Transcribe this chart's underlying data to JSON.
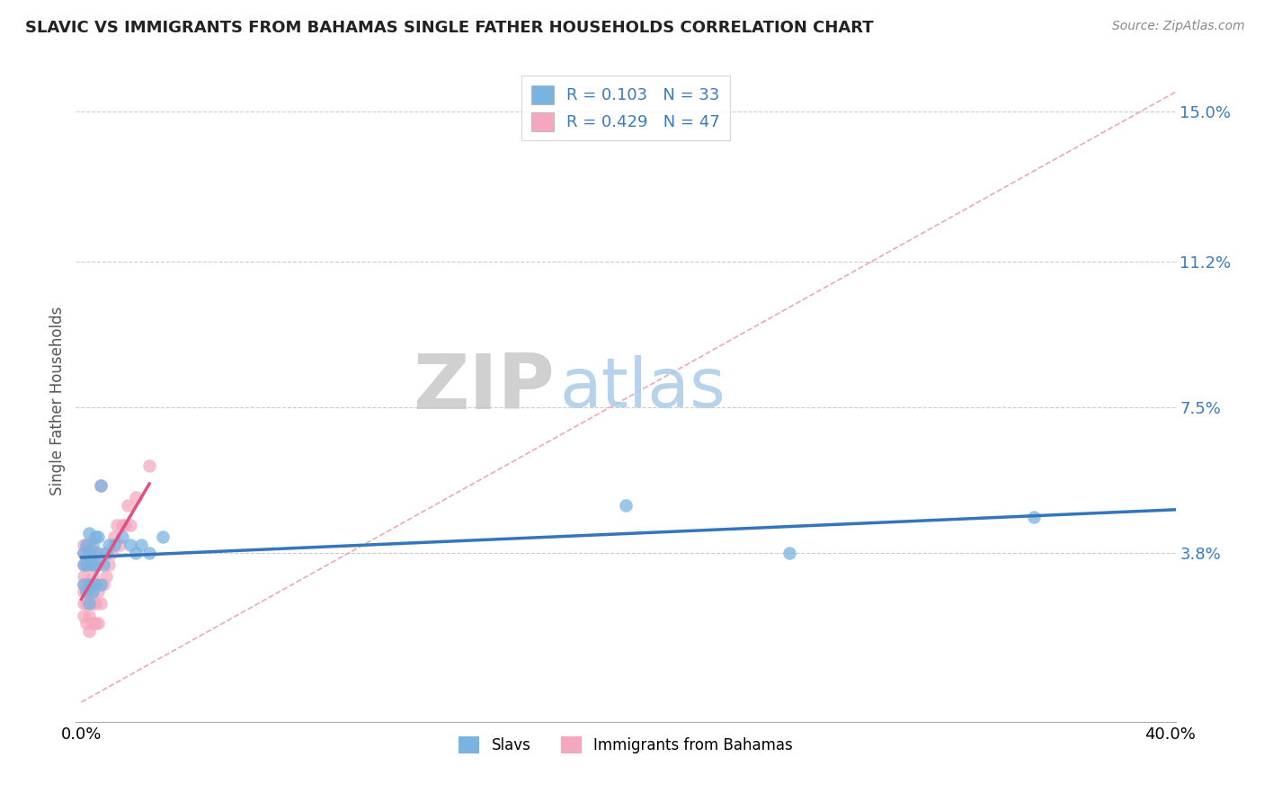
{
  "title": "SLAVIC VS IMMIGRANTS FROM BAHAMAS SINGLE FATHER HOUSEHOLDS CORRELATION CHART",
  "source": "Source: ZipAtlas.com",
  "ylabel": "Single Father Households",
  "ymin": -0.005,
  "ymax": 0.158,
  "xmin": -0.002,
  "xmax": 0.402,
  "ytick_vals": [
    0.038,
    0.075,
    0.112,
    0.15
  ],
  "ytick_labels": [
    "3.8%",
    "7.5%",
    "11.2%",
    "15.0%"
  ],
  "xtick_vals": [
    0.0,
    0.4
  ],
  "xtick_labels": [
    "0.0%",
    "40.0%"
  ],
  "slavs_R": 0.103,
  "slavs_N": 33,
  "immigrants_R": 0.429,
  "immigrants_N": 47,
  "color_slavs": "#7ab3e0",
  "color_immigrants": "#f4a8c0",
  "color_slavs_line": "#3575bb",
  "color_immigrants_line": "#e05080",
  "color_diag_line": "#e8a0b0",
  "color_text_blue": "#3a7abf",
  "watermark_zip": "#c8c8c8",
  "watermark_atlas": "#aacce8",
  "background_color": "#ffffff",
  "grid_color": "#cccccc",
  "slavs_x": [
    0.001,
    0.001,
    0.001,
    0.002,
    0.002,
    0.002,
    0.003,
    0.003,
    0.003,
    0.003,
    0.004,
    0.004,
    0.004,
    0.005,
    0.005,
    0.005,
    0.006,
    0.006,
    0.007,
    0.007,
    0.008,
    0.009,
    0.01,
    0.012,
    0.015,
    0.018,
    0.02,
    0.022,
    0.025,
    0.03,
    0.2,
    0.26,
    0.35
  ],
  "slavs_y": [
    0.03,
    0.035,
    0.038,
    0.028,
    0.035,
    0.04,
    0.025,
    0.03,
    0.038,
    0.043,
    0.028,
    0.035,
    0.04,
    0.03,
    0.035,
    0.042,
    0.038,
    0.042,
    0.03,
    0.055,
    0.035,
    0.038,
    0.04,
    0.04,
    0.042,
    0.04,
    0.038,
    0.04,
    0.038,
    0.042,
    0.05,
    0.038,
    0.047
  ],
  "immigrants_x": [
    0.001,
    0.001,
    0.001,
    0.001,
    0.001,
    0.001,
    0.001,
    0.001,
    0.002,
    0.002,
    0.002,
    0.002,
    0.002,
    0.002,
    0.003,
    0.003,
    0.003,
    0.003,
    0.003,
    0.003,
    0.004,
    0.004,
    0.004,
    0.004,
    0.004,
    0.005,
    0.005,
    0.005,
    0.005,
    0.006,
    0.006,
    0.006,
    0.007,
    0.007,
    0.008,
    0.009,
    0.01,
    0.011,
    0.012,
    0.013,
    0.014,
    0.015,
    0.016,
    0.017,
    0.018,
    0.02,
    0.025
  ],
  "immigrants_y": [
    0.022,
    0.025,
    0.028,
    0.03,
    0.032,
    0.035,
    0.038,
    0.04,
    0.02,
    0.025,
    0.028,
    0.03,
    0.035,
    0.04,
    0.018,
    0.022,
    0.028,
    0.03,
    0.035,
    0.04,
    0.02,
    0.025,
    0.028,
    0.032,
    0.038,
    0.02,
    0.025,
    0.03,
    0.038,
    0.02,
    0.028,
    0.035,
    0.025,
    0.055,
    0.03,
    0.032,
    0.035,
    0.038,
    0.042,
    0.045,
    0.04,
    0.045,
    0.045,
    0.05,
    0.045,
    0.052,
    0.06
  ]
}
